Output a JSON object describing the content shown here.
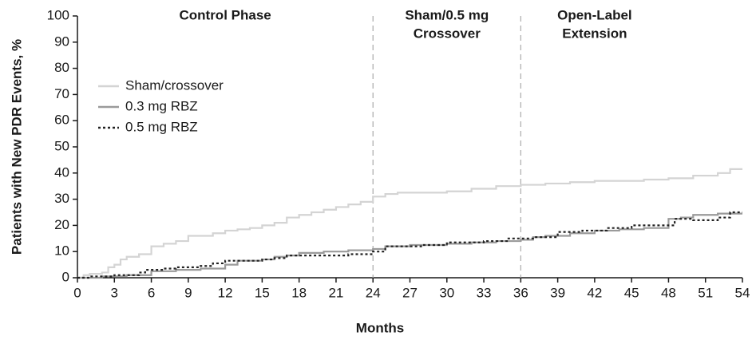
{
  "chart_data": {
    "type": "line",
    "step": true,
    "xlabel": "Months",
    "ylabel": "Patients with New PDR Events, %",
    "xlim": [
      0,
      54
    ],
    "xticks": [
      0,
      3,
      6,
      9,
      12,
      15,
      18,
      21,
      24,
      27,
      30,
      33,
      36,
      39,
      42,
      45,
      48,
      51,
      54
    ],
    "ylim": [
      0,
      100
    ],
    "yticks": [
      0,
      10,
      20,
      30,
      40,
      50,
      60,
      70,
      80,
      90,
      100
    ],
    "vlines": [
      24,
      36
    ],
    "phases": [
      {
        "text": [
          "Control Phase"
        ],
        "x_range": [
          0,
          24
        ]
      },
      {
        "text": [
          "Sham/0.5 mg",
          "Crossover"
        ],
        "x_range": [
          24,
          36
        ]
      },
      {
        "text": [
          "Open-Label",
          "Extension"
        ],
        "x_range": [
          36,
          48
        ]
      }
    ],
    "legend": "upper left",
    "series": [
      {
        "name": "Sham/crossover",
        "color": "#d4d4d4",
        "style": "solid",
        "x": [
          0,
          0.5,
          1,
          2,
          2.5,
          3,
          3.5,
          4,
          5,
          6,
          7,
          8,
          9,
          10,
          11,
          12,
          13,
          14,
          15,
          16,
          17,
          18,
          19,
          20,
          21,
          22,
          23,
          24,
          25,
          26,
          28,
          30,
          32,
          33,
          34,
          35,
          36,
          38,
          40,
          42,
          44,
          46,
          48,
          50,
          52,
          53,
          54
        ],
        "values": [
          0,
          1,
          1.5,
          2,
          4,
          5,
          7,
          8,
          9,
          12,
          13,
          14,
          16,
          16,
          17,
          18,
          18.5,
          19,
          20,
          21,
          23,
          24,
          25,
          26,
          27,
          28,
          29,
          31,
          32,
          32.5,
          32.5,
          33,
          34,
          34,
          35,
          35,
          35.5,
          36,
          36.5,
          37,
          37,
          37.5,
          38,
          39,
          40,
          41.5,
          41.5
        ]
      },
      {
        "name": "0.3 mg RBZ",
        "color": "#9a9a9a",
        "style": "solid",
        "x": [
          0,
          2,
          4,
          6,
          8,
          10,
          12,
          13,
          15,
          16,
          17,
          18,
          20,
          22,
          24,
          25,
          27,
          30,
          32,
          34,
          36,
          37,
          38,
          40,
          42,
          44,
          46,
          48,
          49,
          50,
          52,
          54
        ],
        "values": [
          0,
          0.5,
          1,
          2.5,
          3,
          3.5,
          5,
          6.5,
          7,
          8,
          8.5,
          9.5,
          10,
          10.5,
          11,
          12,
          12.5,
          13,
          13.5,
          14,
          14.5,
          15.5,
          16,
          17,
          18,
          18.5,
          19,
          22.5,
          23,
          24,
          24.5,
          24.5
        ]
      },
      {
        "name": "0.5 mg RBZ",
        "color": "#222222",
        "style": "dotted",
        "x": [
          0,
          1,
          3,
          5,
          5.5,
          7,
          8,
          10,
          11,
          12,
          15,
          16,
          17,
          20,
          22,
          24,
          25,
          28,
          30,
          33,
          35,
          37,
          39,
          41,
          43,
          45,
          48,
          48.5,
          50,
          52,
          53,
          54
        ],
        "values": [
          0,
          0.5,
          1,
          2,
          3,
          3.5,
          4,
          4.5,
          5.5,
          6.5,
          7,
          7.5,
          8.5,
          8.5,
          9,
          10,
          12,
          12.5,
          13.5,
          14,
          15,
          15.5,
          17.5,
          18,
          19,
          20,
          20,
          22.5,
          22,
          23,
          25,
          25
        ]
      }
    ]
  }
}
